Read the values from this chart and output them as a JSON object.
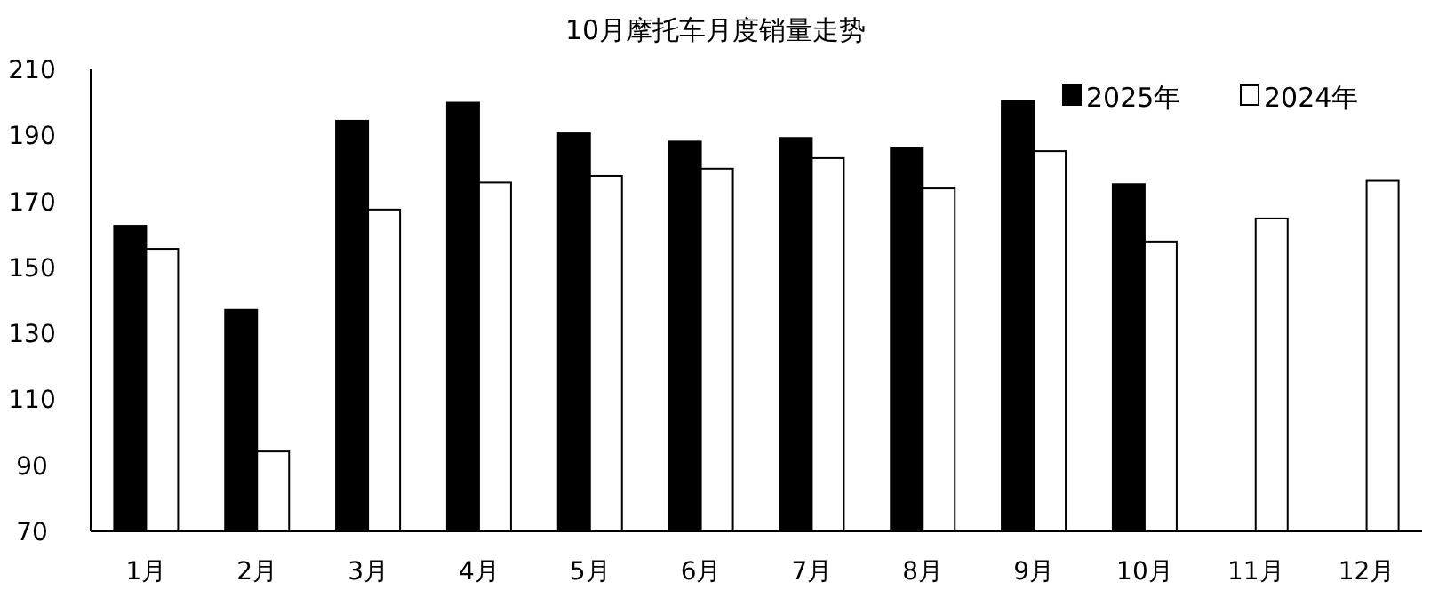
{
  "chart_data": {
    "type": "bar",
    "title": "10月摩托车月度销量走势",
    "categories": [
      "1月",
      "2月",
      "3月",
      "4月",
      "5月",
      "6月",
      "7月",
      "8月",
      "9月",
      "10月",
      "11月",
      "12月"
    ],
    "series": [
      {
        "name": "2025年",
        "color": "#000000",
        "values": [
          162.6,
          137.1,
          194.4,
          199.9,
          190.6,
          188.1,
          189.2,
          186.3,
          200.5,
          175.2,
          null,
          null
        ]
      },
      {
        "name": "2024年",
        "color": "#ffffff",
        "values": [
          155.6,
          94.2,
          167.5,
          175.7,
          177.7,
          179.9,
          183.1,
          173.9,
          185.2,
          157.8,
          164.8,
          176.2
        ]
      }
    ],
    "ylim": [
      70,
      210
    ],
    "yticks": [
      70,
      90,
      110,
      130,
      150,
      170,
      190,
      210
    ],
    "legend": "top right",
    "grid": false
  }
}
